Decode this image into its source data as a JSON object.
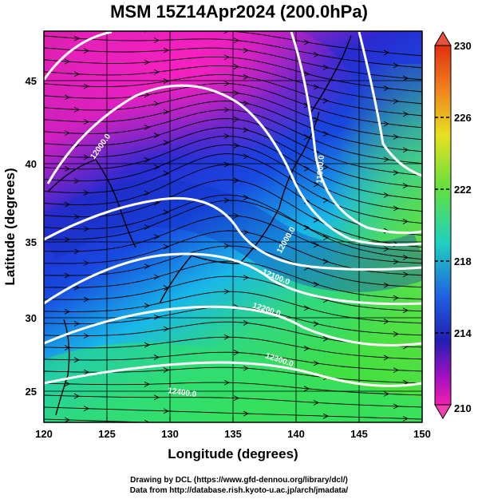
{
  "title": "MSM 15Z14Apr2024 (200.0hPa)",
  "axes": {
    "xlabel": "Longitude (degrees)",
    "ylabel": "Latitude  (degrees)",
    "xticks": [
      "120",
      "125",
      "130",
      "135",
      "140",
      "145",
      "150"
    ],
    "yticks": [
      "25",
      "30",
      "35",
      "40",
      "45"
    ]
  },
  "colorbar": {
    "ticks": [
      "230",
      "226",
      "222",
      "218",
      "214",
      "210"
    ],
    "range": [
      210,
      230
    ]
  },
  "contours": {
    "labels": [
      "12000.0",
      "11900.0",
      "12000.0",
      "12100.0",
      "12200.0",
      "12300.0",
      "12400.0"
    ]
  },
  "footer": {
    "line1": "Drawing by DCL (https://www.gfd-dennou.org/library/dcl/)",
    "line2": "Data from http://database.rish.kyoto-u.ac.jp/arch/jmadata/"
  },
  "colors": {
    "low": "#e000a0",
    "mid_low": "#1a2fd0",
    "mid": "#00c8e0",
    "mid_high": "#30e060",
    "high": "#e02000"
  }
}
